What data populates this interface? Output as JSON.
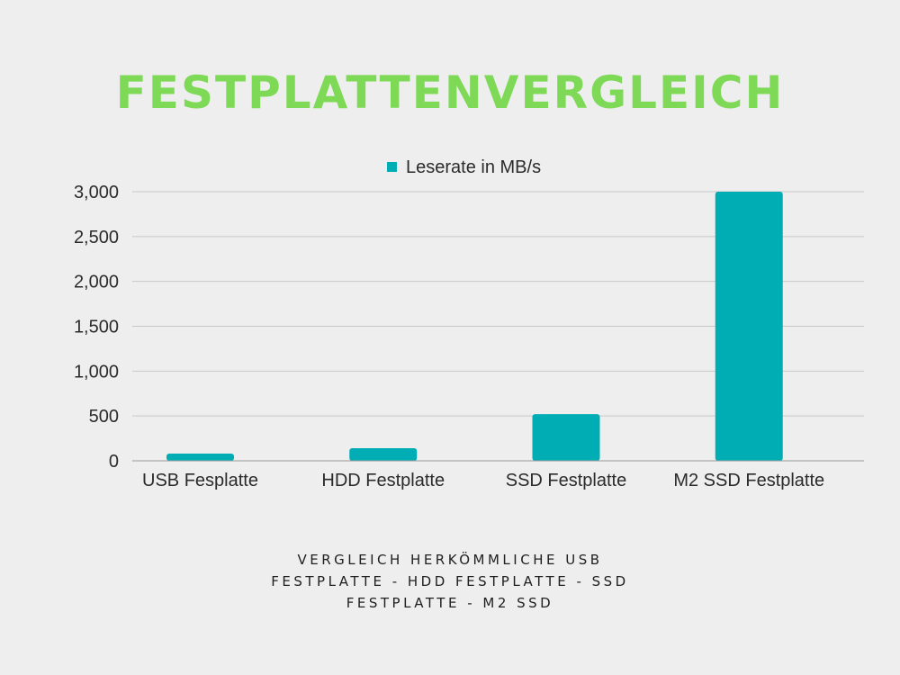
{
  "title": "FESTPLATTENVERGLEICH",
  "caption": {
    "lines": [
      "VERGLEICH HERKÖMMLICHE USB",
      "FESTPLATTE - HDD FESTPLATTE - SSD",
      "FESTPLATTE - M2 SSD"
    ]
  },
  "colors": {
    "title": "#7ed957",
    "bar": "#00adb5",
    "grid": "#c8c8c8",
    "background": "#eeeeee"
  },
  "chart_data": {
    "type": "bar",
    "title": "",
    "categories": [
      "USB Fesplatte",
      "HDD Festplatte",
      "SSD Festplatte",
      "M2 SSD Festplatte"
    ],
    "series": [
      {
        "name": "Leserate in MB/s",
        "values": [
          80,
          140,
          520,
          3000
        ]
      }
    ],
    "xlabel": "",
    "ylabel": "",
    "ylim": [
      0,
      3000
    ],
    "yticks": [
      0,
      500,
      1000,
      1500,
      2000,
      2500,
      3000
    ],
    "ytick_labels": [
      "0",
      "500",
      "1,000",
      "1,500",
      "2,000",
      "2,500",
      "3,000"
    ],
    "grid": true,
    "legend": "top-center"
  }
}
